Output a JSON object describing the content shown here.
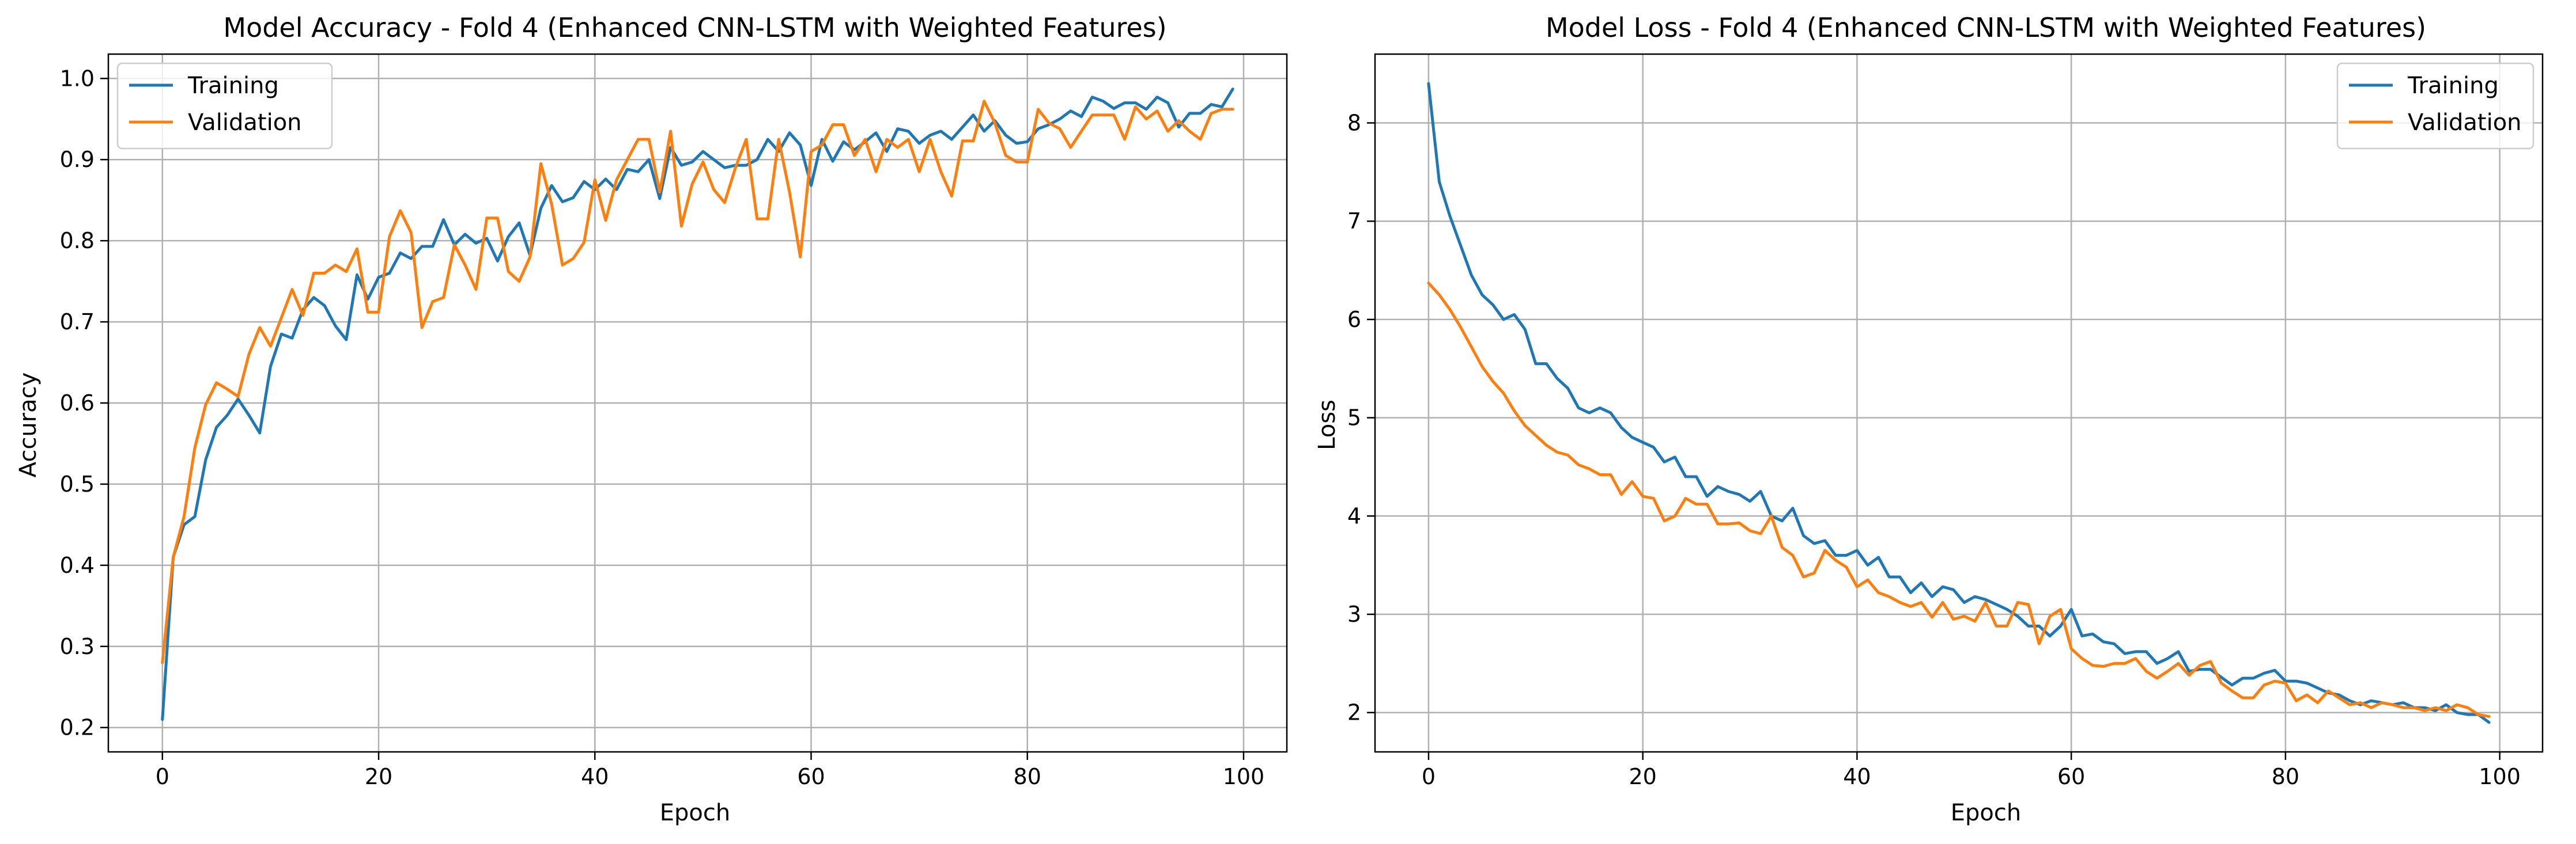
{
  "chart_data": [
    {
      "type": "line",
      "title": "Model Accuracy - Fold 4 (Enhanced CNN-LSTM with Weighted Features)",
      "xlabel": "Epoch",
      "ylabel": "Accuracy",
      "xlim": [
        -5,
        104
      ],
      "ylim": [
        0.17,
        1.03
      ],
      "xticks": [
        0,
        20,
        40,
        60,
        80,
        100
      ],
      "yticks": [
        0.2,
        0.3,
        0.4,
        0.5,
        0.6,
        0.7,
        0.8,
        0.9,
        1.0
      ],
      "ytick_labels": [
        "0.2",
        "0.3",
        "0.4",
        "0.5",
        "0.6",
        "0.7",
        "0.8",
        "0.9",
        "1.0"
      ],
      "grid": true,
      "legend": "upper left",
      "series": [
        {
          "name": "Training",
          "color": "#1f77b4",
          "values": [
            0.21,
            0.41,
            0.45,
            0.46,
            0.53,
            0.57,
            0.585,
            0.605,
            0.585,
            0.563,
            0.645,
            0.685,
            0.68,
            0.715,
            0.73,
            0.72,
            0.695,
            0.678,
            0.758,
            0.728,
            0.755,
            0.76,
            0.785,
            0.778,
            0.793,
            0.793,
            0.826,
            0.795,
            0.808,
            0.797,
            0.803,
            0.775,
            0.805,
            0.822,
            0.782,
            0.84,
            0.868,
            0.848,
            0.853,
            0.873,
            0.863,
            0.876,
            0.863,
            0.888,
            0.885,
            0.9,
            0.852,
            0.915,
            0.893,
            0.897,
            0.91,
            0.9,
            0.89,
            0.893,
            0.893,
            0.9,
            0.925,
            0.91,
            0.933,
            0.918,
            0.868,
            0.925,
            0.898,
            0.922,
            0.912,
            0.922,
            0.933,
            0.91,
            0.938,
            0.935,
            0.92,
            0.93,
            0.935,
            0.925,
            0.94,
            0.955,
            0.935,
            0.948,
            0.93,
            0.92,
            0.922,
            0.938,
            0.943,
            0.95,
            0.96,
            0.953,
            0.977,
            0.972,
            0.963,
            0.97,
            0.97,
            0.962,
            0.977,
            0.97,
            0.94,
            0.957,
            0.957,
            0.968,
            0.965,
            0.987
          ]
        },
        {
          "name": "Validation",
          "color": "#ff7f0e",
          "values": [
            0.28,
            0.41,
            0.46,
            0.545,
            0.598,
            0.625,
            0.617,
            0.608,
            0.66,
            0.693,
            0.67,
            0.705,
            0.74,
            0.708,
            0.76,
            0.76,
            0.77,
            0.762,
            0.79,
            0.712,
            0.712,
            0.805,
            0.837,
            0.81,
            0.693,
            0.725,
            0.73,
            0.795,
            0.77,
            0.74,
            0.828,
            0.828,
            0.762,
            0.75,
            0.78,
            0.895,
            0.845,
            0.77,
            0.778,
            0.798,
            0.875,
            0.825,
            0.875,
            0.9,
            0.925,
            0.925,
            0.86,
            0.935,
            0.818,
            0.87,
            0.897,
            0.863,
            0.847,
            0.89,
            0.925,
            0.827,
            0.827,
            0.925,
            0.86,
            0.78,
            0.91,
            0.918,
            0.943,
            0.943,
            0.905,
            0.925,
            0.885,
            0.925,
            0.915,
            0.925,
            0.885,
            0.925,
            0.885,
            0.855,
            0.923,
            0.923,
            0.972,
            0.945,
            0.905,
            0.897,
            0.897,
            0.962,
            0.945,
            0.938,
            0.915,
            0.935,
            0.955,
            0.955,
            0.955,
            0.925,
            0.965,
            0.95,
            0.96,
            0.935,
            0.948,
            0.935,
            0.925,
            0.957,
            0.962,
            0.962
          ]
        }
      ]
    },
    {
      "type": "line",
      "title": "Model Loss - Fold 4 (Enhanced CNN-LSTM with Weighted Features)",
      "xlabel": "Epoch",
      "ylabel": "Loss",
      "xlim": [
        -5,
        104
      ],
      "ylim": [
        1.6,
        8.7
      ],
      "xticks": [
        0,
        20,
        40,
        60,
        80,
        100
      ],
      "yticks": [
        2,
        3,
        4,
        5,
        6,
        7,
        8
      ],
      "ytick_labels": [
        "2",
        "3",
        "4",
        "5",
        "6",
        "7",
        "8"
      ],
      "grid": true,
      "legend": "upper right",
      "series": [
        {
          "name": "Training",
          "color": "#1f77b4",
          "values": [
            8.4,
            7.4,
            7.05,
            6.75,
            6.45,
            6.25,
            6.15,
            6.0,
            6.05,
            5.9,
            5.55,
            5.55,
            5.4,
            5.3,
            5.1,
            5.05,
            5.1,
            5.05,
            4.9,
            4.8,
            4.75,
            4.7,
            4.55,
            4.6,
            4.4,
            4.4,
            4.2,
            4.3,
            4.25,
            4.22,
            4.15,
            4.25,
            4.0,
            3.95,
            4.08,
            3.8,
            3.72,
            3.75,
            3.6,
            3.6,
            3.65,
            3.5,
            3.58,
            3.38,
            3.38,
            3.22,
            3.32,
            3.18,
            3.28,
            3.25,
            3.12,
            3.18,
            3.15,
            3.1,
            3.05,
            2.98,
            2.88,
            2.88,
            2.78,
            2.88,
            3.05,
            2.78,
            2.8,
            2.72,
            2.7,
            2.6,
            2.62,
            2.62,
            2.5,
            2.55,
            2.62,
            2.42,
            2.44,
            2.44,
            2.36,
            2.28,
            2.35,
            2.35,
            2.4,
            2.43,
            2.32,
            2.32,
            2.3,
            2.25,
            2.2,
            2.18,
            2.12,
            2.08,
            2.12,
            2.1,
            2.08,
            2.1,
            2.05,
            2.05,
            2.02,
            2.08,
            2.0,
            1.98,
            1.98,
            1.9
          ]
        },
        {
          "name": "Validation",
          "color": "#ff7f0e",
          "values": [
            6.37,
            6.25,
            6.1,
            5.92,
            5.72,
            5.52,
            5.37,
            5.25,
            5.07,
            4.92,
            4.82,
            4.72,
            4.65,
            4.62,
            4.52,
            4.48,
            4.42,
            4.42,
            4.22,
            4.35,
            4.2,
            4.18,
            3.95,
            4.0,
            4.18,
            4.12,
            4.12,
            3.92,
            3.92,
            3.93,
            3.85,
            3.82,
            4.0,
            3.68,
            3.6,
            3.38,
            3.42,
            3.65,
            3.55,
            3.48,
            3.28,
            3.35,
            3.22,
            3.18,
            3.12,
            3.08,
            3.12,
            2.97,
            3.12,
            2.95,
            2.98,
            2.93,
            3.12,
            2.88,
            2.88,
            3.12,
            3.1,
            2.7,
            2.98,
            3.05,
            2.65,
            2.55,
            2.48,
            2.47,
            2.5,
            2.5,
            2.55,
            2.42,
            2.35,
            2.42,
            2.5,
            2.38,
            2.48,
            2.52,
            2.3,
            2.22,
            2.15,
            2.15,
            2.28,
            2.32,
            2.3,
            2.12,
            2.18,
            2.1,
            2.22,
            2.15,
            2.08,
            2.1,
            2.05,
            2.1,
            2.08,
            2.05,
            2.05,
            2.02,
            2.05,
            2.02,
            2.08,
            2.05,
            1.98,
            1.96
          ]
        }
      ]
    }
  ]
}
